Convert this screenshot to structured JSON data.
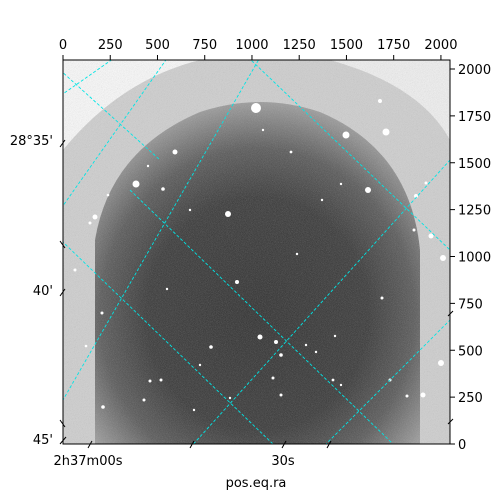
{
  "chart_data": {
    "type": "image",
    "xlabel": "pos.eq.ra",
    "pixel_axes": {
      "x_range": [
        0,
        2048
      ],
      "y_range": [
        0,
        2048
      ],
      "x_ticks": [
        0,
        250,
        500,
        750,
        1000,
        1250,
        1500,
        1750,
        2000
      ],
      "y_ticks": [
        0,
        250,
        500,
        750,
        1000,
        1250,
        1500,
        1750,
        2000
      ]
    },
    "world_axes": {
      "dec_labels": [
        "28°35'",
        "40'",
        "45'"
      ],
      "ra_labels": [
        "2h37m00s",
        "30s"
      ]
    },
    "grid": true,
    "grid_color": "#00e5e5",
    "colormap": "gray"
  }
}
